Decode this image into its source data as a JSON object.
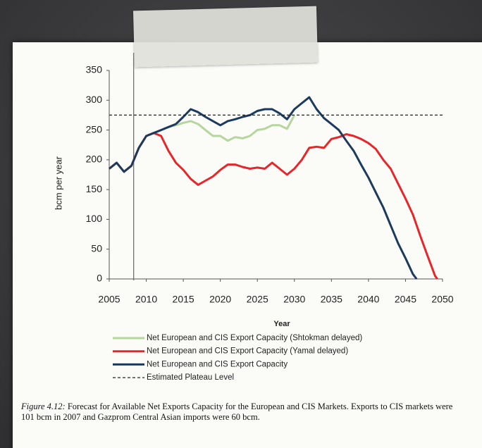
{
  "chart_data": {
    "type": "line",
    "xlabel": "Year",
    "ylabel": "bcm per year",
    "xlim": [
      2005,
      2050
    ],
    "xticks": [
      2005,
      2010,
      2015,
      2020,
      2025,
      2030,
      2035,
      2040,
      2045,
      2050
    ],
    "ylim": [
      0,
      350
    ],
    "yticks": [
      0,
      50,
      100,
      150,
      200,
      250,
      300,
      350
    ],
    "vline_x": 2008.3,
    "series": [
      {
        "name": "Net European and CIS Export Capacity (Shtokman delayed)",
        "color": "#b5d69c",
        "dash": false,
        "x": [
          2005,
          2006,
          2007,
          2008,
          2009,
          2010,
          2011,
          2012,
          2013,
          2014,
          2015,
          2016,
          2017,
          2018,
          2019,
          2020,
          2021,
          2022,
          2023,
          2024,
          2025,
          2026,
          2027,
          2028,
          2029,
          2030
        ],
        "values": [
          185,
          195,
          180,
          190,
          220,
          240,
          245,
          250,
          255,
          258,
          262,
          265,
          260,
          250,
          240,
          240,
          232,
          238,
          236,
          240,
          250,
          252,
          258,
          258,
          252,
          275
        ]
      },
      {
        "name": "Net European and CIS Export Capacity (Yamal delayed)",
        "color": "#e8262a",
        "dash": false,
        "x": [
          2005,
          2006,
          2007,
          2008,
          2009,
          2010,
          2011,
          2012,
          2013,
          2014,
          2015,
          2016,
          2017,
          2018,
          2019,
          2020,
          2021,
          2022,
          2023,
          2024,
          2025,
          2026,
          2027,
          2028,
          2029,
          2030,
          2031,
          2032,
          2033,
          2034,
          2035,
          2036,
          2037,
          2038,
          2039,
          2040,
          2041,
          2042,
          2043,
          2044,
          2045,
          2046,
          2047,
          2048,
          2049,
          2049.3
        ],
        "values": [
          185,
          195,
          180,
          190,
          220,
          240,
          245,
          240,
          215,
          195,
          183,
          168,
          158,
          165,
          172,
          183,
          192,
          192,
          188,
          185,
          187,
          185,
          195,
          185,
          175,
          185,
          200,
          220,
          222,
          220,
          235,
          238,
          243,
          240,
          235,
          228,
          218,
          200,
          185,
          160,
          135,
          108,
          72,
          38,
          5,
          0
        ]
      },
      {
        "name": "Net European and CIS Export Capacity",
        "color": "#1c3a5e",
        "dash": false,
        "x": [
          2005,
          2006,
          2007,
          2008,
          2009,
          2010,
          2011,
          2012,
          2013,
          2014,
          2015,
          2016,
          2017,
          2018,
          2019,
          2020,
          2021,
          2022,
          2023,
          2024,
          2025,
          2026,
          2027,
          2028,
          2029,
          2030,
          2031,
          2032,
          2033,
          2034,
          2035,
          2036,
          2037,
          2038,
          2039,
          2040,
          2041,
          2042,
          2043,
          2044,
          2045,
          2046,
          2046.5
        ],
        "values": [
          185,
          195,
          180,
          190,
          220,
          240,
          245,
          250,
          255,
          260,
          272,
          285,
          280,
          272,
          265,
          258,
          265,
          268,
          272,
          275,
          282,
          285,
          285,
          278,
          268,
          285,
          295,
          305,
          285,
          270,
          260,
          250,
          232,
          215,
          192,
          170,
          145,
          120,
          90,
          60,
          35,
          8,
          0
        ]
      },
      {
        "name": "Estimated Plateau Level",
        "color": "#222222",
        "dash": true,
        "x": [
          2005,
          2050
        ],
        "values": [
          275,
          275
        ]
      }
    ],
    "caption_label": "Figure 4.12:",
    "caption": "Forecast for Available Net Exports Capacity for the European and CIS Markets. Exports to CIS markets were 101 bcm in 2007 and Gazprom Central Asian imports were 60 bcm."
  }
}
